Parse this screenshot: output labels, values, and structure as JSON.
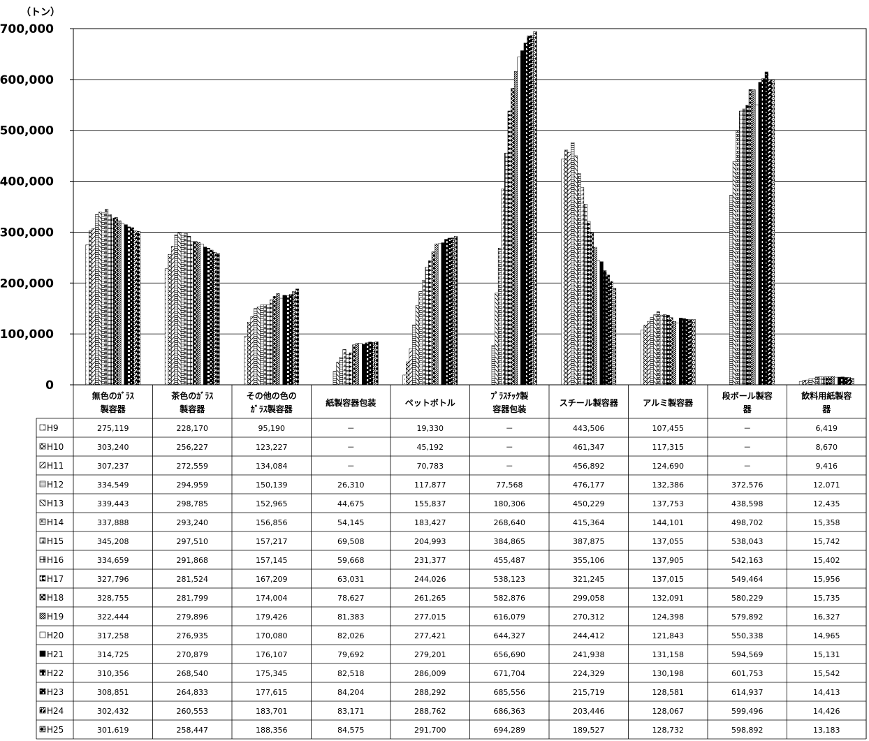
{
  "chart_data": {
    "type": "bar",
    "unit_label": "（トン）",
    "ylim": [
      0,
      700000
    ],
    "y_ticks": [
      "0",
      "100,000",
      "200,000",
      "300,000",
      "400,000",
      "500,000",
      "600,000",
      "700,000"
    ],
    "categories": [
      [
        "無色のｶﾞﾗｽ",
        "製容器"
      ],
      [
        "茶色のｶﾞﾗｽ",
        "製容器"
      ],
      [
        "その他の色の",
        "ｶﾞﾗｽ製容器"
      ],
      [
        "紙製容器包装"
      ],
      [
        "ペットボトル"
      ],
      [
        "ﾌﾟﾗｽﾁｯｸ製",
        "容器包装"
      ],
      [
        "スチール製容器"
      ],
      [
        "アルミ製容器"
      ],
      [
        "段ボール製容",
        "器"
      ],
      [
        "飲料用紙製容",
        "器"
      ]
    ],
    "series": [
      {
        "name": "H9",
        "values": [
          "275,119",
          "228,170",
          "95,190",
          "－",
          "19,330",
          "－",
          "443,506",
          "107,455",
          "－",
          "6,419"
        ]
      },
      {
        "name": "H10",
        "values": [
          "303,240",
          "256,227",
          "123,227",
          "－",
          "45,192",
          "－",
          "461,347",
          "117,315",
          "－",
          "8,670"
        ]
      },
      {
        "name": "H11",
        "values": [
          "307,237",
          "272,559",
          "134,084",
          "－",
          "70,783",
          "－",
          "456,892",
          "124,690",
          "－",
          "9,416"
        ]
      },
      {
        "name": "H12",
        "values": [
          "334,549",
          "294,959",
          "150,139",
          "26,310",
          "117,877",
          "77,568",
          "476,177",
          "132,386",
          "372,576",
          "12,071"
        ]
      },
      {
        "name": "H13",
        "values": [
          "339,443",
          "298,785",
          "152,965",
          "44,675",
          "155,837",
          "180,306",
          "450,229",
          "137,753",
          "438,598",
          "12,435"
        ]
      },
      {
        "name": "H14",
        "values": [
          "337,888",
          "293,240",
          "156,856",
          "54,145",
          "183,427",
          "268,640",
          "415,364",
          "144,101",
          "498,702",
          "15,358"
        ]
      },
      {
        "name": "H15",
        "values": [
          "345,208",
          "297,510",
          "157,217",
          "69,508",
          "204,993",
          "384,865",
          "387,875",
          "137,055",
          "538,043",
          "15,742"
        ]
      },
      {
        "name": "H16",
        "values": [
          "334,659",
          "291,868",
          "157,145",
          "59,668",
          "231,377",
          "455,487",
          "355,106",
          "137,905",
          "542,163",
          "15,402"
        ]
      },
      {
        "name": "H17",
        "values": [
          "327,796",
          "281,524",
          "167,209",
          "63,031",
          "244,026",
          "538,123",
          "321,245",
          "137,015",
          "549,464",
          "15,956"
        ]
      },
      {
        "name": "H18",
        "values": [
          "328,755",
          "281,799",
          "174,004",
          "78,627",
          "261,265",
          "582,876",
          "299,058",
          "132,091",
          "580,229",
          "15,735"
        ]
      },
      {
        "name": "H19",
        "values": [
          "322,444",
          "279,896",
          "179,426",
          "81,383",
          "277,015",
          "616,079",
          "270,312",
          "124,398",
          "579,892",
          "16,327"
        ]
      },
      {
        "name": "H20",
        "values": [
          "317,258",
          "276,935",
          "170,080",
          "82,026",
          "277,421",
          "644,327",
          "244,412",
          "121,843",
          "550,338",
          "14,965"
        ]
      },
      {
        "name": "H21",
        "values": [
          "314,725",
          "270,879",
          "176,107",
          "79,692",
          "279,201",
          "656,690",
          "241,938",
          "131,158",
          "594,569",
          "15,131"
        ]
      },
      {
        "name": "H22",
        "values": [
          "310,356",
          "268,540",
          "175,345",
          "82,518",
          "286,009",
          "671,704",
          "224,329",
          "130,198",
          "601,753",
          "15,542"
        ]
      },
      {
        "name": "H23",
        "values": [
          "308,851",
          "264,833",
          "177,615",
          "84,204",
          "288,292",
          "685,556",
          "215,719",
          "128,581",
          "614,937",
          "14,413"
        ]
      },
      {
        "name": "H24",
        "values": [
          "302,432",
          "260,553",
          "183,701",
          "83,171",
          "288,762",
          "686,363",
          "203,446",
          "128,067",
          "599,496",
          "14,426"
        ]
      },
      {
        "name": "H25",
        "values": [
          "301,619",
          "258,447",
          "188,356",
          "84,575",
          "291,700",
          "694,289",
          "189,527",
          "128,732",
          "598,892",
          "13,183"
        ]
      }
    ],
    "grid": true,
    "legend": "data-table"
  }
}
